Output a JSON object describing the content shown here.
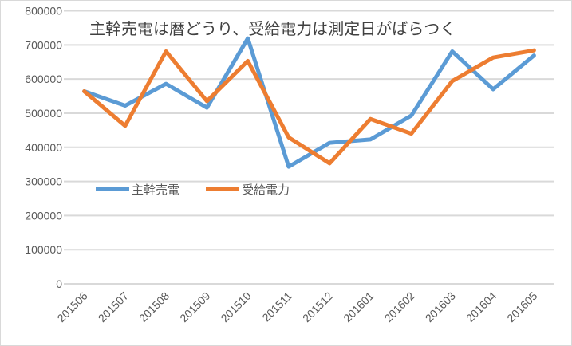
{
  "chart_data": {
    "type": "line",
    "title": "主幹売電は暦どうり、受給電力は測定日がばらつく",
    "xlabel": "",
    "ylabel": "",
    "categories": [
      "201506",
      "201507",
      "201508",
      "201509",
      "201510",
      "201511",
      "201512",
      "201601",
      "201602",
      "201603",
      "201604",
      "201605"
    ],
    "series": [
      {
        "name": "主幹売電",
        "color": "#5B9BD5",
        "values": [
          564000,
          522000,
          586000,
          516000,
          719000,
          343000,
          413000,
          423000,
          493000,
          681000,
          570000,
          669000
        ]
      },
      {
        "name": "受給電力",
        "color": "#ED7D31",
        "values": [
          564000,
          463000,
          681000,
          535000,
          653000,
          429000,
          353000,
          483000,
          440000,
          594000,
          663000,
          684000
        ]
      }
    ],
    "ylim": [
      0,
      800000
    ],
    "yticks": [
      "0",
      "100000",
      "200000",
      "300000",
      "400000",
      "500000",
      "600000",
      "700000",
      "800000"
    ],
    "grid": true,
    "legend_position": "inside-left"
  }
}
